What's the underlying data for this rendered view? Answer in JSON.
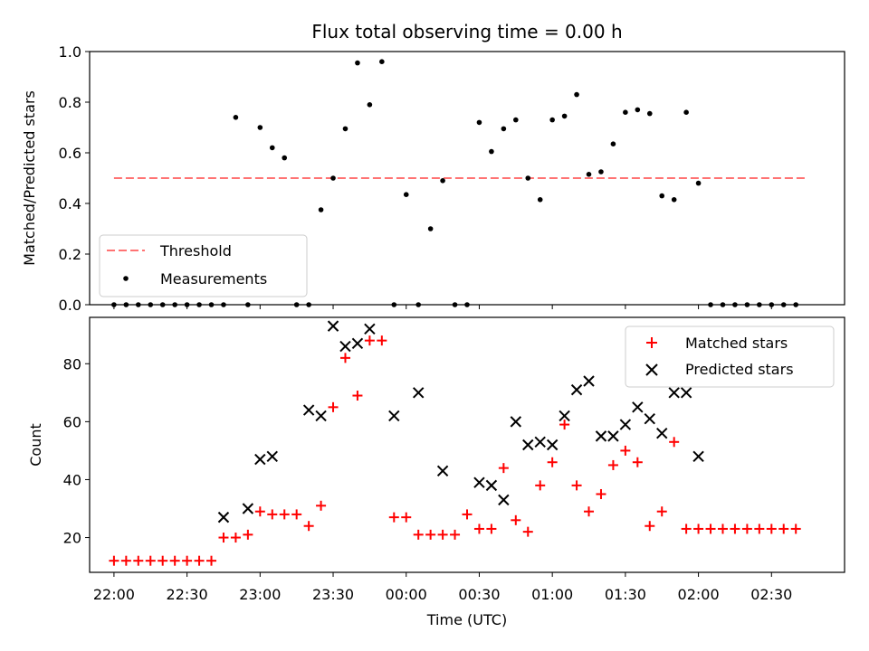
{
  "chart_data": [
    {
      "type": "scatter",
      "title": "Flux total observing time = 0.00 h",
      "xlabel": "",
      "ylabel": "Matched/Predicted stars",
      "xlim_minutes": [
        -10,
        300
      ],
      "ylim": [
        0,
        1.0
      ],
      "yticks": [
        "0.0",
        "0.2",
        "0.4",
        "0.6",
        "0.8",
        "1.0"
      ],
      "legend": {
        "placement": "lower-left",
        "entries": [
          "Threshold",
          "Measurements"
        ]
      },
      "threshold": {
        "name": "Threshold",
        "value": 0.5,
        "x_range": [
          0,
          285
        ],
        "color": "#ff7373"
      },
      "series": [
        {
          "name": "Measurements",
          "color": "#000000",
          "points": [
            [
              0,
              0
            ],
            [
              5,
              0
            ],
            [
              10,
              0
            ],
            [
              15,
              0
            ],
            [
              20,
              0
            ],
            [
              25,
              0
            ],
            [
              30,
              0
            ],
            [
              35,
              0
            ],
            [
              40,
              0
            ],
            [
              45,
              0
            ],
            [
              50,
              0.74
            ],
            [
              55,
              0
            ],
            [
              60,
              0.7
            ],
            [
              65,
              0.62
            ],
            [
              70,
              0.58
            ],
            [
              75,
              0
            ],
            [
              80,
              0
            ],
            [
              85,
              0.375
            ],
            [
              90,
              0.5
            ],
            [
              95,
              0.695
            ],
            [
              100,
              0.955
            ],
            [
              105,
              0.79
            ],
            [
              110,
              0.96
            ],
            [
              115,
              0
            ],
            [
              120,
              0.435
            ],
            [
              125,
              0
            ],
            [
              130,
              0.3
            ],
            [
              135,
              0.49
            ],
            [
              140,
              0
            ],
            [
              145,
              0
            ],
            [
              150,
              0.72
            ],
            [
              155,
              0.605
            ],
            [
              160,
              0.695
            ],
            [
              165,
              0.73
            ],
            [
              170,
              0.5
            ],
            [
              175,
              0.415
            ],
            [
              180,
              0.73
            ],
            [
              185,
              0.745
            ],
            [
              190,
              0.83
            ],
            [
              195,
              0.515
            ],
            [
              200,
              0.525
            ],
            [
              205,
              0.635
            ],
            [
              210,
              0.76
            ],
            [
              215,
              0.77
            ],
            [
              220,
              0.755
            ],
            [
              225,
              0.43
            ],
            [
              230,
              0.415
            ],
            [
              235,
              0.76
            ],
            [
              240,
              0.48
            ],
            [
              245,
              0
            ],
            [
              250,
              0
            ],
            [
              255,
              0
            ],
            [
              260,
              0
            ],
            [
              265,
              0
            ],
            [
              270,
              0
            ],
            [
              275,
              0
            ],
            [
              280,
              0
            ]
          ]
        }
      ]
    },
    {
      "type": "scatter",
      "title": "",
      "xlabel": "Time (UTC)",
      "ylabel": "Count",
      "xlim_minutes": [
        -10,
        300
      ],
      "ylim": [
        8,
        96
      ],
      "yticks": [
        "20",
        "40",
        "60",
        "80"
      ],
      "xticks": [
        "22:00",
        "22:30",
        "23:00",
        "23:30",
        "00:00",
        "00:30",
        "01:00",
        "01:30",
        "02:00",
        "02:30"
      ],
      "legend": {
        "placement": "top-right",
        "entries": [
          "Matched stars",
          "Predicted stars"
        ]
      },
      "series": [
        {
          "name": "Matched stars",
          "marker": "plus",
          "color": "#ff0000",
          "points": [
            [
              0,
              12
            ],
            [
              5,
              12
            ],
            [
              10,
              12
            ],
            [
              15,
              12
            ],
            [
              20,
              12
            ],
            [
              25,
              12
            ],
            [
              30,
              12
            ],
            [
              35,
              12
            ],
            [
              40,
              12
            ],
            [
              45,
              20
            ],
            [
              50,
              20
            ],
            [
              55,
              21
            ],
            [
              60,
              29
            ],
            [
              65,
              28
            ],
            [
              70,
              28
            ],
            [
              75,
              28
            ],
            [
              80,
              24
            ],
            [
              85,
              31
            ],
            [
              90,
              65
            ],
            [
              95,
              82
            ],
            [
              100,
              69
            ],
            [
              105,
              88
            ],
            [
              110,
              88
            ],
            [
              115,
              27
            ],
            [
              120,
              27
            ],
            [
              125,
              21
            ],
            [
              130,
              21
            ],
            [
              135,
              21
            ],
            [
              140,
              21
            ],
            [
              145,
              28
            ],
            [
              150,
              23
            ],
            [
              155,
              23
            ],
            [
              160,
              44
            ],
            [
              165,
              26
            ],
            [
              170,
              22
            ],
            [
              175,
              38
            ],
            [
              180,
              46
            ],
            [
              185,
              59
            ],
            [
              190,
              38
            ],
            [
              195,
              29
            ],
            [
              200,
              35
            ],
            [
              205,
              45
            ],
            [
              210,
              50
            ],
            [
              215,
              46
            ],
            [
              220,
              24
            ],
            [
              225,
              29
            ],
            [
              230,
              53
            ],
            [
              235,
              23
            ],
            [
              240,
              23
            ],
            [
              245,
              23
            ],
            [
              250,
              23
            ],
            [
              255,
              23
            ],
            [
              260,
              23
            ],
            [
              265,
              23
            ],
            [
              270,
              23
            ],
            [
              275,
              23
            ],
            [
              280,
              23
            ]
          ]
        },
        {
          "name": "Predicted stars",
          "marker": "x",
          "color": "#000000",
          "points": [
            [
              45,
              27
            ],
            [
              55,
              30
            ],
            [
              60,
              47
            ],
            [
              65,
              48
            ],
            [
              80,
              64
            ],
            [
              85,
              62
            ],
            [
              90,
              93
            ],
            [
              95,
              86
            ],
            [
              100,
              87
            ],
            [
              105,
              92
            ],
            [
              115,
              62
            ],
            [
              125,
              70
            ],
            [
              135,
              43
            ],
            [
              150,
              39
            ],
            [
              155,
              38
            ],
            [
              160,
              33
            ],
            [
              165,
              60
            ],
            [
              170,
              52
            ],
            [
              175,
              53
            ],
            [
              180,
              52
            ],
            [
              185,
              62
            ],
            [
              190,
              71
            ],
            [
              195,
              74
            ],
            [
              200,
              55
            ],
            [
              205,
              55
            ],
            [
              210,
              59
            ],
            [
              215,
              65
            ],
            [
              220,
              61
            ],
            [
              225,
              56
            ],
            [
              230,
              70
            ],
            [
              235,
              70
            ],
            [
              240,
              48
            ]
          ]
        }
      ]
    }
  ]
}
